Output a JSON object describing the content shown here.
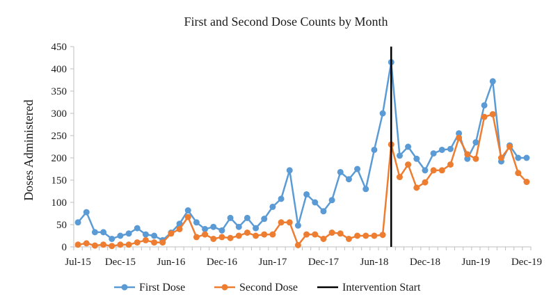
{
  "chart_data": {
    "type": "line",
    "title": "First and Second Dose Counts by Month",
    "xlabel": "",
    "ylabel": "Doses Administered",
    "ylim": [
      0,
      450
    ],
    "yticks": [
      "0",
      "50",
      "100",
      "150",
      "200",
      "250",
      "300",
      "350",
      "400",
      "450"
    ],
    "xticks": [
      "Jul-15",
      "Dec-15",
      "Jun-16",
      "Dec-16",
      "Jun-17",
      "Dec-17",
      "Jun-18",
      "Dec-18",
      "Jun-19",
      "Dec-19"
    ],
    "x": [
      "Jul-15",
      "Aug-15",
      "Sep-15",
      "Oct-15",
      "Nov-15",
      "Dec-15",
      "Jan-16",
      "Feb-16",
      "Mar-16",
      "Apr-16",
      "May-16",
      "Jun-16",
      "Jul-16",
      "Aug-16",
      "Sep-16",
      "Oct-16",
      "Nov-16",
      "Dec-16",
      "Jan-17",
      "Feb-17",
      "Mar-17",
      "Apr-17",
      "May-17",
      "Jun-17",
      "Jul-17",
      "Aug-17",
      "Sep-17",
      "Oct-17",
      "Nov-17",
      "Dec-17",
      "Jan-18",
      "Feb-18",
      "Mar-18",
      "Apr-18",
      "May-18",
      "Jun-18",
      "Jul-18",
      "Aug-18",
      "Sep-18",
      "Oct-18",
      "Nov-18",
      "Dec-18",
      "Jan-19",
      "Feb-19",
      "Mar-19",
      "Apr-19",
      "May-19",
      "Jun-19",
      "Jul-19",
      "Aug-19",
      "Sep-19",
      "Oct-19",
      "Nov-19",
      "Dec-19"
    ],
    "series": [
      {
        "name": "First Dose",
        "color": "#5b9bd5",
        "values": [
          55,
          78,
          33,
          33,
          18,
          25,
          30,
          42,
          28,
          25,
          15,
          32,
          52,
          82,
          55,
          40,
          45,
          37,
          65,
          45,
          65,
          42,
          63,
          90,
          108,
          172,
          48,
          118,
          100,
          80,
          105,
          168,
          152,
          175,
          130,
          218,
          300,
          415,
          205,
          225,
          198,
          172,
          210,
          218,
          220,
          255,
          198,
          235,
          318,
          372,
          192,
          228,
          200,
          200
        ]
      },
      {
        "name": "Second Dose",
        "color": "#ed7d31",
        "values": [
          5,
          8,
          3,
          5,
          2,
          5,
          5,
          10,
          15,
          10,
          10,
          30,
          40,
          67,
          22,
          28,
          18,
          22,
          20,
          25,
          32,
          25,
          28,
          28,
          55,
          55,
          4,
          28,
          28,
          18,
          32,
          30,
          18,
          25,
          25,
          25,
          27,
          230,
          157,
          185,
          133,
          145,
          172,
          172,
          185,
          245,
          208,
          198,
          292,
          298,
          200,
          225,
          166,
          146
        ]
      }
    ],
    "intervention": {
      "name": "Intervention Start",
      "x": "Aug-18",
      "color": "#000000"
    },
    "legend": {
      "position": "bottom"
    },
    "grid": false
  }
}
